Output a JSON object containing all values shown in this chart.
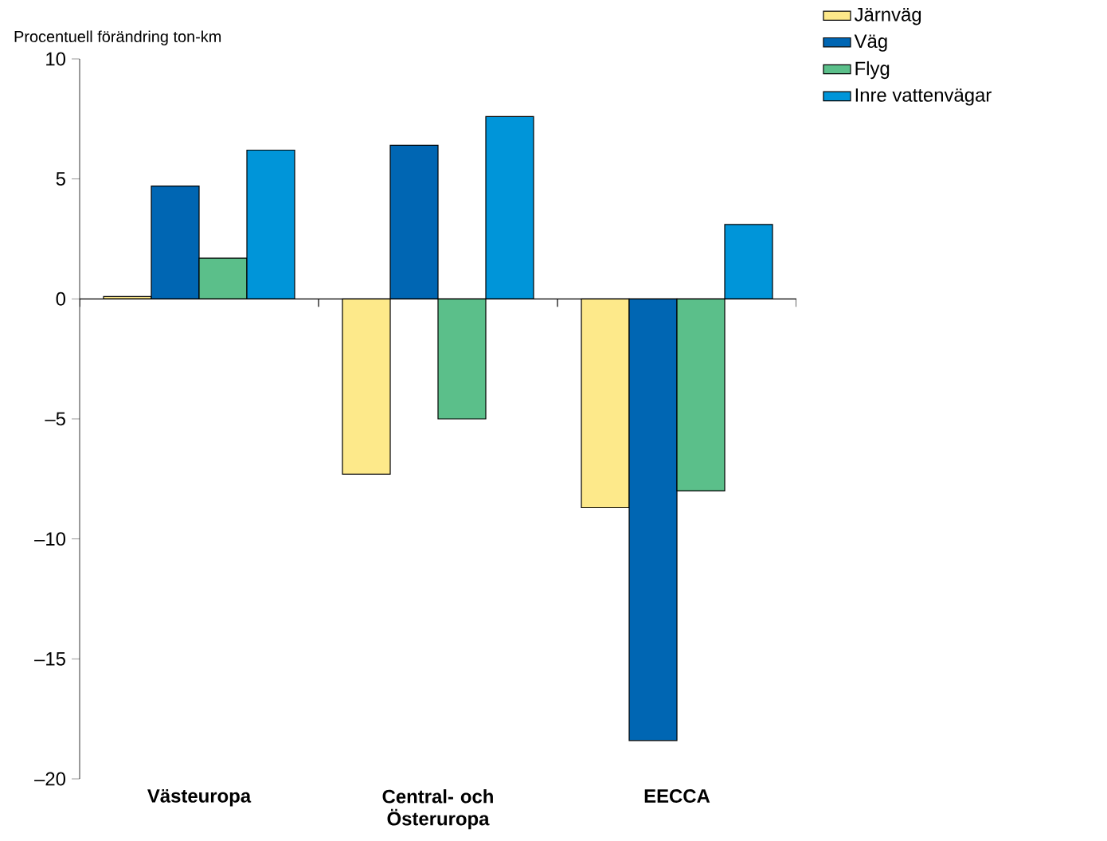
{
  "chart_data": {
    "type": "bar",
    "ylabel": "Procentuell förändring ton-km",
    "categories": [
      "Västeuropa",
      "Central- och Österuropa",
      "EECCA"
    ],
    "series": [
      {
        "name": "Järnväg",
        "color": "#fde98a",
        "values": [
          0.1,
          -7.3,
          -8.7
        ]
      },
      {
        "name": "Väg",
        "color": "#0066b3",
        "values": [
          4.7,
          6.4,
          -18.4
        ]
      },
      {
        "name": "Flyg",
        "color": "#5bbf8a",
        "values": [
          1.7,
          -5.0,
          -8.0
        ]
      },
      {
        "name": "Inre vattenvägar",
        "color": "#0095d9",
        "values": [
          6.2,
          7.6,
          3.1
        ]
      }
    ],
    "ylim": [
      -20,
      10
    ],
    "yticks": [
      {
        "value": -20,
        "label": "–20"
      },
      {
        "value": -15,
        "label": "–15"
      },
      {
        "value": -10,
        "label": "–10"
      },
      {
        "value": -5,
        "label": "–5"
      },
      0,
      5,
      10
    ],
    "legend": "top right"
  }
}
